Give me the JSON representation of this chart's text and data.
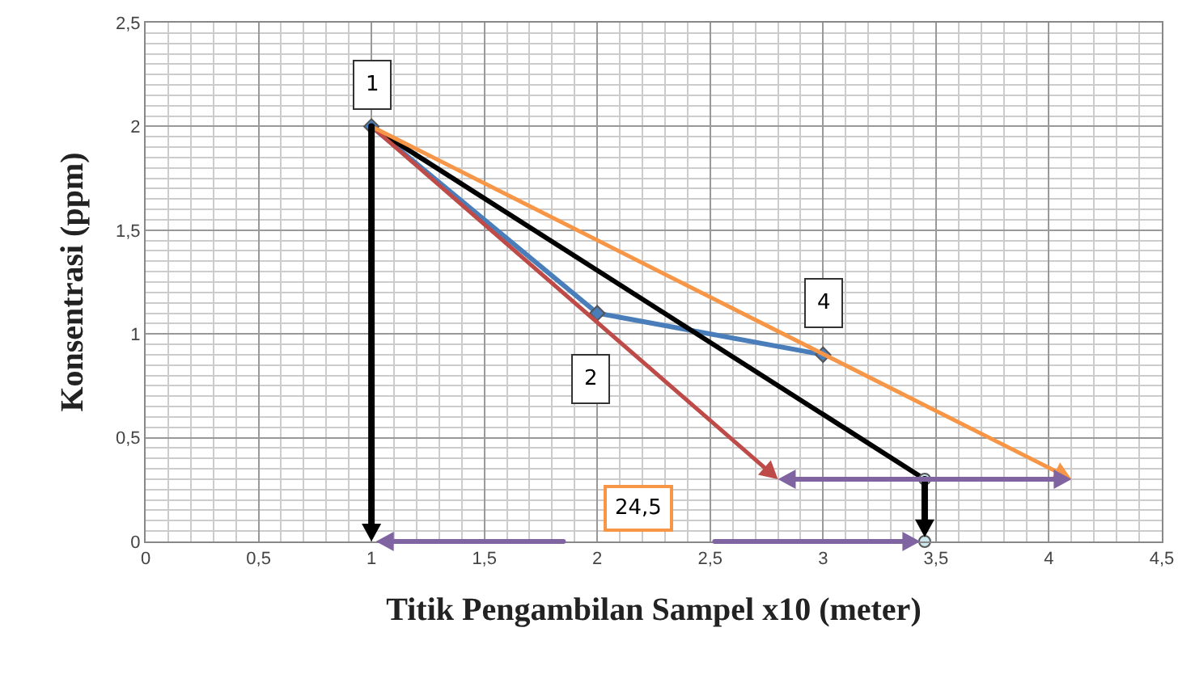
{
  "chart_data": {
    "type": "line",
    "xlabel": "Titik Pengambilan Sampel x10 (meter)",
    "ylabel": "Konsentrasi (ppm)",
    "xlim": [
      0,
      4.5
    ],
    "ylim": [
      0,
      2.5
    ],
    "xticks": [
      0,
      {
        "value": 0.5,
        "label": "0,5"
      },
      1,
      {
        "value": 1.5,
        "label": "1,5"
      },
      2,
      {
        "value": 2.5,
        "label": "2,5"
      },
      3,
      {
        "value": 3.5,
        "label": "3,5"
      },
      4,
      {
        "value": 4.5,
        "label": "4,5"
      }
    ],
    "yticks": [
      0,
      {
        "value": 0.5,
        "label": "0,5"
      },
      1,
      {
        "value": 1.5,
        "label": "1,5"
      },
      2,
      {
        "value": 2.5,
        "label": "2,5"
      }
    ],
    "grid": true,
    "series": [
      {
        "color": "#4a7ebb",
        "x": [
          1,
          2,
          3
        ],
        "values": [
          2,
          1.1,
          0.9
        ],
        "marker": "diamond"
      },
      {
        "color": "#000000",
        "x": [
          1,
          3.45
        ],
        "values": [
          2,
          0.3
        ],
        "marker": "none"
      },
      {
        "type": "scatter",
        "color": "#cde9ef",
        "x": [
          3.45,
          3.45
        ],
        "values": [
          0.3,
          0
        ],
        "marker": "circle"
      }
    ],
    "annotations": [
      {
        "text": "1",
        "x": 1,
        "y": 2.2
      },
      {
        "text": "2",
        "x": 1.97,
        "y": 0.78
      },
      {
        "text": "4",
        "x": 3,
        "y": 1.15
      },
      "24,5"
    ]
  }
}
